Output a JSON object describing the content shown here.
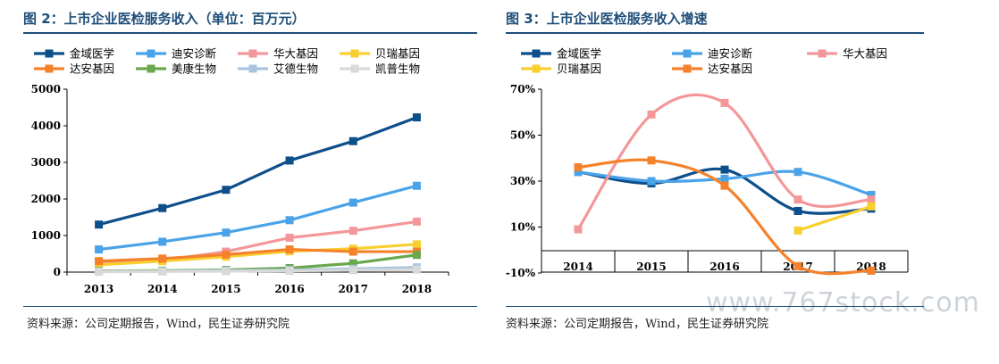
{
  "left_panel": {
    "title": "图 2：上市企业医检服务收入（单位：百万元）",
    "source": "资料来源：公司定期报告，Wind，民生证券研究院"
  },
  "right_panel": {
    "title": "图 3：上市企业医检服务收入增速",
    "source": "资料来源：公司定期报告，Wind，民生证券研究院"
  },
  "watermark": "www.767stock.com",
  "chart_data": [
    {
      "type": "line",
      "title": "上市企业医检服务收入（单位：百万元）",
      "xlabel": "",
      "ylabel": "",
      "x": [
        "2013",
        "2014",
        "2015",
        "2016",
        "2017",
        "2018"
      ],
      "yticks": [
        "0",
        "1000",
        "2000",
        "3000",
        "4000",
        "5000"
      ],
      "ylim": [
        0,
        5000
      ],
      "grid": false,
      "legend_position": "top",
      "series": [
        {
          "name": "金域医学",
          "color": "#0d4f8b",
          "values": [
            1300,
            1750,
            2250,
            3050,
            3580,
            4230
          ]
        },
        {
          "name": "迪安诊断",
          "color": "#4aa3e8",
          "values": [
            620,
            830,
            1080,
            1420,
            1900,
            2360
          ]
        },
        {
          "name": "华大基因",
          "color": "#f4979a",
          "values": [
            260,
            320,
            560,
            940,
            1130,
            1380
          ]
        },
        {
          "name": "贝瑞基因",
          "color": "#f9cf30",
          "values": [
            200,
            300,
            420,
            570,
            640,
            760
          ]
        },
        {
          "name": "达安基因",
          "color": "#f5812b",
          "values": [
            300,
            370,
            480,
            620,
            560,
            560
          ]
        },
        {
          "name": "美康生物",
          "color": "#6aa84f",
          "values": [
            30,
            40,
            60,
            110,
            240,
            470
          ]
        },
        {
          "name": "艾德生物",
          "color": "#a9c4df",
          "values": [
            15,
            25,
            40,
            60,
            90,
            130
          ]
        },
        {
          "name": "凯普生物",
          "color": "#d9d9d9",
          "values": [
            10,
            18,
            25,
            35,
            50,
            70
          ]
        }
      ]
    },
    {
      "type": "line",
      "title": "上市企业医检服务收入增速",
      "xlabel": "",
      "ylabel": "",
      "x": [
        "2014",
        "2015",
        "2016",
        "2017",
        "2018"
      ],
      "yticks": [
        "-10%",
        "10%",
        "30%",
        "50%",
        "70%"
      ],
      "ylim": [
        -10,
        70
      ],
      "grid": false,
      "legend_position": "top",
      "smooth": true,
      "series": [
        {
          "name": "金域医学",
          "color": "#0d4f8b",
          "values": [
            34,
            29,
            35,
            17,
            18
          ]
        },
        {
          "name": "迪安诊断",
          "color": "#4aa3e8",
          "values": [
            34,
            30,
            31,
            34,
            24
          ]
        },
        {
          "name": "华大基因",
          "color": "#f4979a",
          "values": [
            9,
            59,
            64,
            22,
            22
          ]
        },
        {
          "name": "贝瑞基因",
          "color": "#f9cf30",
          "values": [
            null,
            null,
            null,
            8.5,
            19
          ]
        },
        {
          "name": "达安基因",
          "color": "#f5812b",
          "values": [
            36,
            39,
            28,
            -7,
            -9
          ]
        }
      ]
    }
  ]
}
